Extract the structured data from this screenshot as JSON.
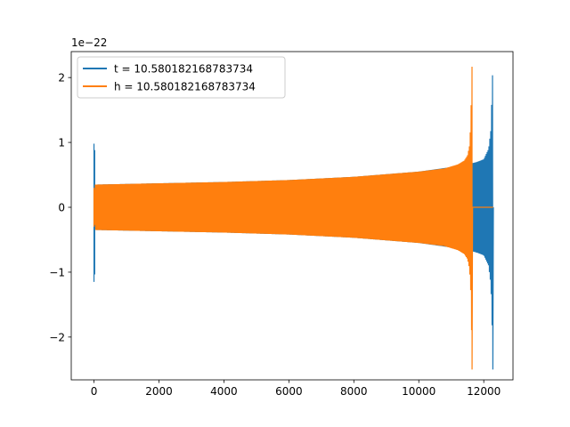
{
  "chart_data": {
    "type": "line",
    "title": "",
    "xlabel": "",
    "ylabel": "",
    "xlim": [
      -700,
      12900
    ],
    "ylim": [
      -2.66,
      2.4
    ],
    "y_offset_label": "1e−22",
    "x_ticks": [
      0,
      2000,
      4000,
      6000,
      8000,
      10000,
      12000
    ],
    "x_tick_labels": [
      "0",
      "2000",
      "4000",
      "6000",
      "8000",
      "10000",
      "12000"
    ],
    "y_ticks": [
      -2,
      -1,
      0,
      1,
      2
    ],
    "y_tick_labels": [
      "−2",
      "−1",
      "0",
      "1",
      "2"
    ],
    "grid": false,
    "legend_position": "upper-left",
    "series": [
      {
        "name": "t = 10.580182168783734",
        "color": "#1f77b4",
        "x_range": [
          0,
          12280
        ],
        "start_spike": {
          "x": 0,
          "min": -1.15,
          "max": 0.98
        },
        "envelope": [
          [
            40,
            0.35
          ],
          [
            2000,
            0.37
          ],
          [
            4000,
            0.39
          ],
          [
            6000,
            0.42
          ],
          [
            8000,
            0.47
          ],
          [
            10000,
            0.55
          ],
          [
            11000,
            0.62
          ],
          [
            11650,
            0.68
          ],
          [
            11800,
            0.7
          ],
          [
            12000,
            0.74
          ],
          [
            12150,
            0.9
          ],
          [
            12220,
            1.2
          ],
          [
            12260,
            1.9
          ],
          [
            12280,
            2.2
          ]
        ],
        "end_min": -2.5,
        "end_x": 12280
      },
      {
        "name": "h = 10.580182168783734",
        "color": "#ff7f0e",
        "x_range": [
          0,
          12290
        ],
        "start_spike": {
          "x": 0,
          "min": -0.3,
          "max": 0.3
        },
        "envelope": [
          [
            40,
            0.35
          ],
          [
            2000,
            0.37
          ],
          [
            4000,
            0.39
          ],
          [
            6000,
            0.42
          ],
          [
            8000,
            0.47
          ],
          [
            9000,
            0.51
          ],
          [
            10000,
            0.55
          ],
          [
            10800,
            0.6
          ],
          [
            11200,
            0.66
          ],
          [
            11400,
            0.72
          ],
          [
            11500,
            0.8
          ],
          [
            11560,
            0.95
          ],
          [
            11600,
            1.3
          ],
          [
            11620,
            1.8
          ],
          [
            11640,
            2.2
          ]
        ],
        "end_min": -2.5,
        "end_x": 11640,
        "flat_after": {
          "from": 11640,
          "to": 12290,
          "value": 0
        }
      }
    ]
  }
}
